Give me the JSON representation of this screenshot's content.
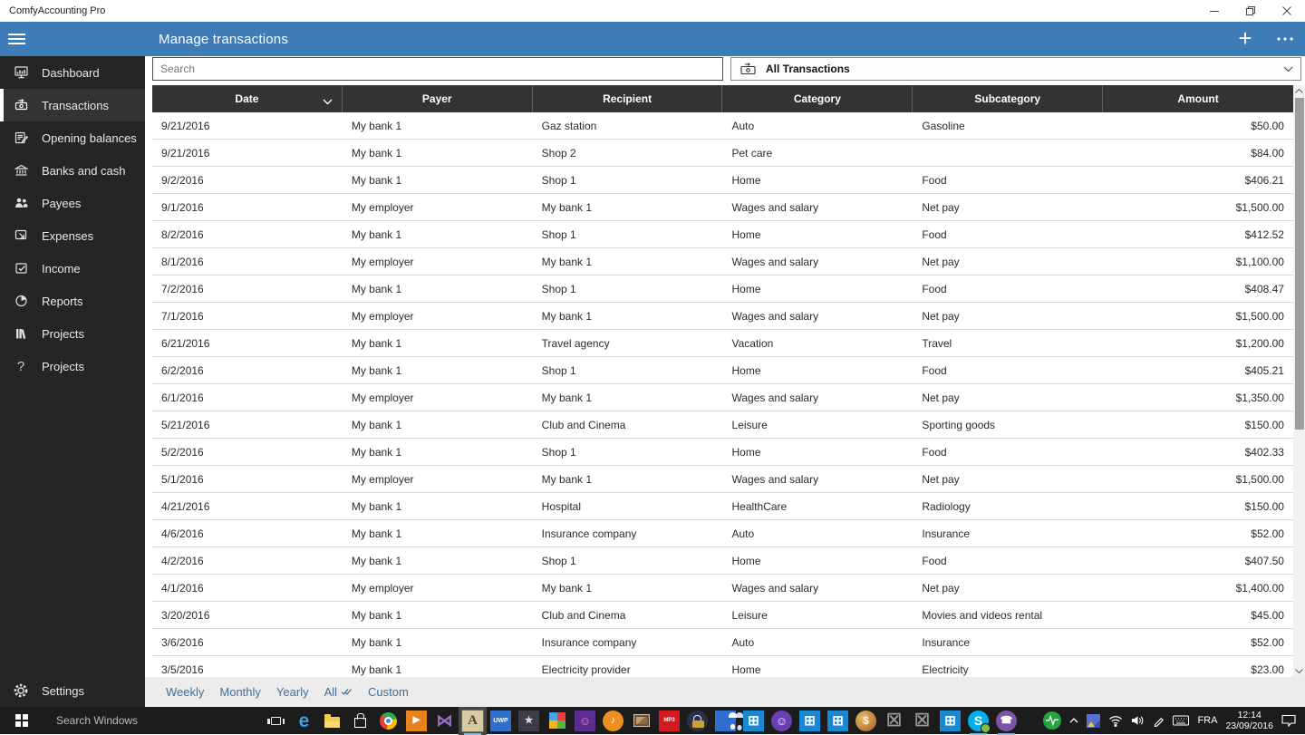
{
  "window": {
    "title": "ComfyAccounting Pro"
  },
  "app_bar": {
    "title": "Manage transactions"
  },
  "colors": {
    "accent_blue": "#3e7cb7",
    "table_header_dark": "#333333",
    "sidebar_dark": "#252525",
    "footer_link_blue": "#3f6f9c"
  },
  "sidebar": {
    "items": [
      {
        "label": "Dashboard",
        "icon": "dashboard-icon",
        "selected": false
      },
      {
        "label": "Transactions",
        "icon": "transactions-icon",
        "selected": true
      },
      {
        "label": "Opening balances",
        "icon": "opening-balances-icon",
        "selected": false
      },
      {
        "label": "Banks and cash",
        "icon": "bank-icon",
        "selected": false
      },
      {
        "label": "Payees",
        "icon": "payees-icon",
        "selected": false
      },
      {
        "label": "Expenses",
        "icon": "expenses-icon",
        "selected": false
      },
      {
        "label": "Income",
        "icon": "income-icon",
        "selected": false
      },
      {
        "label": "Reports",
        "icon": "reports-icon",
        "selected": false
      },
      {
        "label": "Projects",
        "icon": "books-icon",
        "selected": false
      },
      {
        "label": "Projects",
        "icon": "question-mark-icon",
        "selected": false
      }
    ],
    "settings_label": "Settings"
  },
  "toolbar": {
    "search_placeholder": "Search",
    "filter_value": "All Transactions"
  },
  "table": {
    "columns": [
      "Date",
      "Payer",
      "Recipient",
      "Category",
      "Subcategory",
      "Amount"
    ],
    "sorted_column": "Date",
    "rows": [
      [
        "9/21/2016",
        "My bank 1",
        "Gaz station",
        "Auto",
        "Gasoline",
        "$50.00"
      ],
      [
        "9/21/2016",
        "My bank 1",
        "Shop 2",
        "Pet care",
        "",
        "$84.00"
      ],
      [
        "9/2/2016",
        "My bank 1",
        "Shop 1",
        "Home",
        "Food",
        "$406.21"
      ],
      [
        "9/1/2016",
        "My employer",
        "My bank 1",
        "Wages and salary",
        "Net pay",
        "$1,500.00"
      ],
      [
        "8/2/2016",
        "My bank 1",
        "Shop 1",
        "Home",
        "Food",
        "$412.52"
      ],
      [
        "8/1/2016",
        "My employer",
        "My bank 1",
        "Wages and salary",
        "Net pay",
        "$1,100.00"
      ],
      [
        "7/2/2016",
        "My bank 1",
        "Shop 1",
        "Home",
        "Food",
        "$408.47"
      ],
      [
        "7/1/2016",
        "My employer",
        "My bank 1",
        "Wages and salary",
        "Net pay",
        "$1,500.00"
      ],
      [
        "6/21/2016",
        "My bank 1",
        "Travel agency",
        "Vacation",
        "Travel",
        "$1,200.00"
      ],
      [
        "6/2/2016",
        "My bank 1",
        "Shop 1",
        "Home",
        "Food",
        "$405.21"
      ],
      [
        "6/1/2016",
        "My employer",
        "My bank 1",
        "Wages and salary",
        "Net pay",
        "$1,350.00"
      ],
      [
        "5/21/2016",
        "My bank 1",
        "Club and Cinema",
        "Leisure",
        "Sporting goods",
        "$150.00"
      ],
      [
        "5/2/2016",
        "My bank 1",
        "Shop 1",
        "Home",
        "Food",
        "$402.33"
      ],
      [
        "5/1/2016",
        "My employer",
        "My bank 1",
        "Wages and salary",
        "Net pay",
        "$1,500.00"
      ],
      [
        "4/21/2016",
        "My bank 1",
        "Hospital",
        "HealthCare",
        "Radiology",
        "$150.00"
      ],
      [
        "4/6/2016",
        "My bank 1",
        "Insurance company",
        "Auto",
        "Insurance",
        "$52.00"
      ],
      [
        "4/2/2016",
        "My bank 1",
        "Shop 1",
        "Home",
        "Food",
        "$407.50"
      ],
      [
        "4/1/2016",
        "My employer",
        "My bank 1",
        "Wages and salary",
        "Net pay",
        "$1,400.00"
      ],
      [
        "3/20/2016",
        "My bank 1",
        "Club and Cinema",
        "Leisure",
        "Movies and videos rental",
        "$45.00"
      ],
      [
        "3/6/2016",
        "My bank 1",
        "Insurance company",
        "Auto",
        "Insurance",
        "$52.00"
      ],
      [
        "3/5/2016",
        "My bank 1",
        "Electricity provider",
        "Home",
        "Electricity",
        "$23.00"
      ]
    ]
  },
  "footer_filters": {
    "items": [
      "Weekly",
      "Monthly",
      "Yearly",
      "All",
      "Custom"
    ],
    "active": "All"
  },
  "taskbar": {
    "search_placeholder": "Search Windows",
    "language": "FRA",
    "time": "12:14",
    "date": "23/09/2016",
    "icons": [
      {
        "name": "task-view-icon",
        "cls": "i-taskview",
        "shape": true
      },
      {
        "name": "edge-icon",
        "glyph": "e",
        "fg": "#35a3e8",
        "size": 21
      },
      {
        "name": "file-explorer-icon",
        "cls": "i-folder",
        "shape": true
      },
      {
        "name": "store-icon",
        "cls": "i-bag",
        "shape": true
      },
      {
        "name": "chrome-icon",
        "cls": "i-chrome",
        "shape": true
      },
      {
        "name": "media-player-icon",
        "glyph": "▶",
        "bg": "#e8821e",
        "fg": "#ffffff",
        "size": 10
      },
      {
        "name": "visual-studio-icon",
        "glyph": "⋈",
        "fg": "#9b6bc7",
        "size": 18
      },
      {
        "name": "comfyaccounting-app-icon",
        "glyph": "A",
        "bg": "#d8c9a3",
        "fg": "#54422c",
        "size": 15,
        "cls": "i-serif",
        "active": true,
        "running": true
      },
      {
        "name": "uwp-app-icon",
        "glyph": "UWP",
        "bg": "#2f6fd0",
        "fg": "#ffffff",
        "size": 7,
        "cls": "i-badge"
      },
      {
        "name": "star-app-icon",
        "glyph": "★",
        "bg": "#3c3c46",
        "fg": "#d8dbef",
        "size": 11
      },
      {
        "name": "tiles-app-icon",
        "cls": "i-tiles",
        "shape": true
      },
      {
        "name": "emoji-app-icon",
        "glyph": "☺",
        "bg": "#5b2d91",
        "fg": "#ff7bd1",
        "size": 13
      },
      {
        "name": "bell-app-icon",
        "glyph": "♪",
        "bg": "#ef8f1f",
        "fg": "#ffffff",
        "size": 11,
        "round": true
      },
      {
        "name": "photos-app-icon",
        "cls": "i-photo",
        "shape": true
      },
      {
        "name": "mp3-app-icon",
        "glyph": "MP3",
        "bg": "#d51920",
        "fg": "#ffffff",
        "size": 6,
        "cls": "i-badge"
      },
      {
        "name": "lock-app-icon",
        "cls": "i-lock",
        "shape": true,
        "bg": "#2b2f4a",
        "round": true
      },
      {
        "name": "people-app-icon",
        "cls": "i-people",
        "shape": true,
        "bg": "#2f6fd0"
      },
      {
        "name": "windows-app-icon",
        "glyph": "⊞",
        "bg": "#1889d2",
        "fg": "#ffffff",
        "size": 15
      },
      {
        "name": "smiley-app-icon",
        "glyph": "☺",
        "bg": "#6a3fb5",
        "fg": "#ffffff",
        "size": 13,
        "round": true
      },
      {
        "name": "windows-app-icon-2",
        "glyph": "⊞",
        "bg": "#1889d2",
        "fg": "#ffffff",
        "size": 15
      },
      {
        "name": "windows-app-icon-3",
        "glyph": "⊞",
        "bg": "#1889d2",
        "fg": "#ffffff",
        "size": 15
      },
      {
        "name": "coin-app-icon",
        "glyph": "$",
        "bg": "radial-gradient(circle at 35% 35%, #e8b964, #a3611f)",
        "fg": "#ffffff",
        "size": 12,
        "round": true
      },
      {
        "name": "broken-app-icon",
        "glyph": "☒",
        "fg": "#9a9a9a",
        "size": 19
      },
      {
        "name": "broken-app-icon-2",
        "glyph": "☒",
        "fg": "#9a9a9a",
        "size": 19
      },
      {
        "name": "windows-app-icon-4",
        "glyph": "⊞",
        "bg": "#1889d2",
        "fg": "#ffffff",
        "size": 15
      },
      {
        "name": "skype-icon",
        "glyph": "S",
        "bg": "#00aff0",
        "fg": "#ffffff",
        "size": 14,
        "round": true,
        "cls": "i-skype",
        "running": true
      },
      {
        "name": "viber-icon",
        "glyph": "☎",
        "bg": "#7d53a8",
        "fg": "#ffffff",
        "size": 11,
        "round": true,
        "running": true
      }
    ]
  }
}
